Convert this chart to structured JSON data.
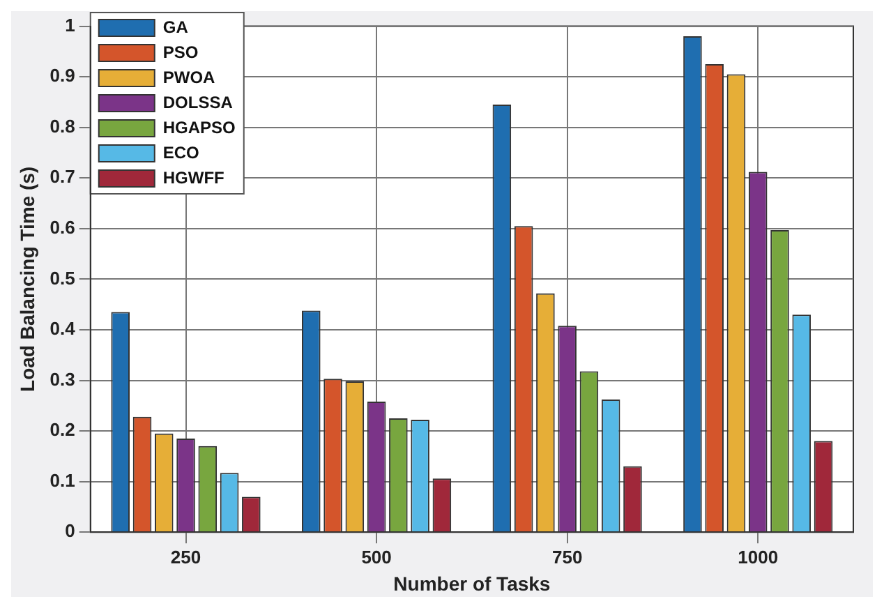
{
  "chart_data": {
    "type": "bar",
    "xlabel": "Number of Tasks",
    "ylabel": "Load Balancing Time (s)",
    "categories": [
      "250",
      "500",
      "750",
      "1000"
    ],
    "series": [
      {
        "name": "GA",
        "color": "#1f6eb0",
        "values": [
          0.435,
          0.438,
          0.845,
          0.98
        ]
      },
      {
        "name": "PSO",
        "color": "#d4552b",
        "values": [
          0.228,
          0.303,
          0.605,
          0.925
        ]
      },
      {
        "name": "PWOA",
        "color": "#e6ae37",
        "values": [
          0.195,
          0.298,
          0.472,
          0.905
        ]
      },
      {
        "name": "DOLSSA",
        "color": "#7b3488",
        "values": [
          0.185,
          0.258,
          0.408,
          0.712
        ]
      },
      {
        "name": "HGAPSO",
        "color": "#78a63f",
        "values": [
          0.17,
          0.225,
          0.318,
          0.597
        ]
      },
      {
        "name": "ECO",
        "color": "#56b9e6",
        "values": [
          0.117,
          0.222,
          0.262,
          0.43
        ]
      },
      {
        "name": "HGWFF",
        "color": "#a0283a",
        "values": [
          0.07,
          0.106,
          0.13,
          0.18
        ]
      }
    ],
    "ylim": [
      0,
      1
    ],
    "yticks": [
      0,
      0.1,
      0.2,
      0.3,
      0.4,
      0.5,
      0.6,
      0.7,
      0.8,
      0.9,
      1
    ],
    "grid": true,
    "legend": "top left"
  }
}
